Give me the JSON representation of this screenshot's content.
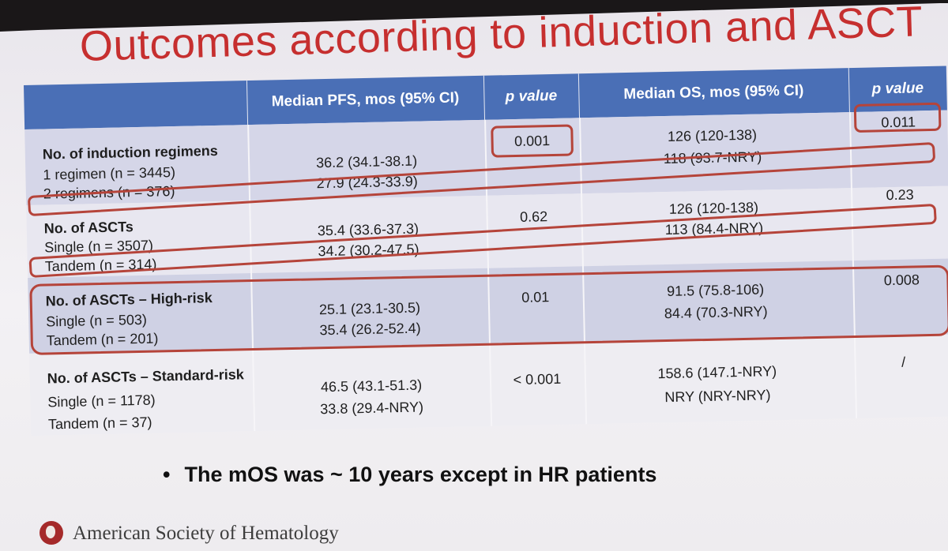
{
  "slide": {
    "title": "Outcomes according to induction and ASCT",
    "bullet": "The mOS was ~ 10 years except in HR patients",
    "footer": "American Society of Hematology",
    "accent_color": "#c62f2f",
    "header_color": "#4a6fb6",
    "highlight_color": "#b5443a"
  },
  "table": {
    "headers": {
      "pfs": "Median PFS, mos (95% CI)",
      "pfs_p": "p value",
      "os": "Median OS, mos (95% CI)",
      "os_p": "p value"
    },
    "groups": [
      {
        "title": "No. of induction regimens",
        "pfs_p": "0.001",
        "os_p": "0.011",
        "rows": [
          {
            "label": "1 regimen (n = 3445)",
            "pfs": "36.2 (34.1-38.1)",
            "os": "126 (120-138)"
          },
          {
            "label": "2 regimens (n = 376)",
            "pfs": "27.9 (24.3-33.9)",
            "os": "118 (93.7-NRY)"
          }
        ]
      },
      {
        "title": "No. of ASCTs",
        "pfs_p": "0.62",
        "os_p": "0.23",
        "rows": [
          {
            "label": "Single (n = 3507)",
            "pfs": "35.4 (33.6-37.3)",
            "os": "126 (120-138)"
          },
          {
            "label": "Tandem (n = 314)",
            "pfs": "34.2 (30.2-47.5)",
            "os": "113 (84.4-NRY)"
          }
        ]
      },
      {
        "title": "No. of ASCTs – High-risk",
        "pfs_p": "0.01",
        "os_p": "0.008",
        "rows": [
          {
            "label": "Single (n = 503)",
            "pfs": "25.1 (23.1-30.5)",
            "os": "91.5 (75.8-106)"
          },
          {
            "label": "Tandem (n = 201)",
            "pfs": "35.4 (26.2-52.4)",
            "os": "84.4 (70.3-NRY)"
          }
        ]
      },
      {
        "title": "No. of ASCTs – Standard-risk",
        "pfs_p": "< 0.001",
        "os_p": "/",
        "rows": [
          {
            "label": "Single (n = 1178)",
            "pfs": "46.5 (43.1-51.3)",
            "os": "158.6 (147.1-NRY)"
          },
          {
            "label": "Tandem (n = 37)",
            "pfs": "33.8 (29.4-NRY)",
            "os": "NRY (NRY-NRY)"
          }
        ]
      }
    ]
  }
}
